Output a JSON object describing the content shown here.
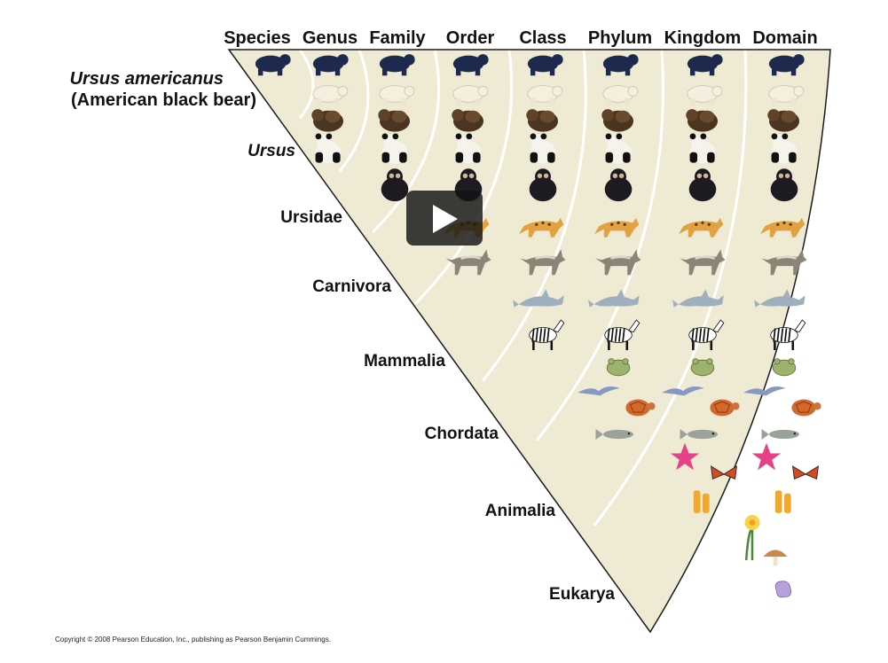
{
  "headers": [
    "Species",
    "Genus",
    "Family",
    "Order",
    "Class",
    "Phylum",
    "Kingdom",
    "Domain"
  ],
  "species_label": {
    "scientific": "Ursus americanus",
    "common": "(American black bear)"
  },
  "levels": [
    {
      "label": "Ursus",
      "italic": true
    },
    {
      "label": "Ursidae",
      "italic": false
    },
    {
      "label": "Carnivora",
      "italic": false
    },
    {
      "label": "Mammalia",
      "italic": false
    },
    {
      "label": "Chordata",
      "italic": false
    },
    {
      "label": "Animalia",
      "italic": false
    },
    {
      "label": "Eukarya",
      "italic": false
    }
  ],
  "band_colors": [
    "#efead3",
    "#fbc05c",
    "#ee7d60",
    "#9d8dc2",
    "#52bde6",
    "#62c08c",
    "#7fd0cf",
    "#5fa3c9"
  ],
  "organisms": [
    "black bear",
    "polar bear",
    "brown bear",
    "giant panda",
    "spectacled bear",
    "leopard",
    "wolf",
    "dolphin",
    "zebra",
    "frog",
    "bird",
    "turtle",
    "fish",
    "sea star",
    "butterfly",
    "sponge",
    "daffodil",
    "mushroom",
    "amoeba"
  ],
  "copyright": "Copyright © 2008 Pearson Education, Inc., publishing as Pearson Benjamin Cummings.",
  "play_button": {
    "icon": "play-icon"
  }
}
